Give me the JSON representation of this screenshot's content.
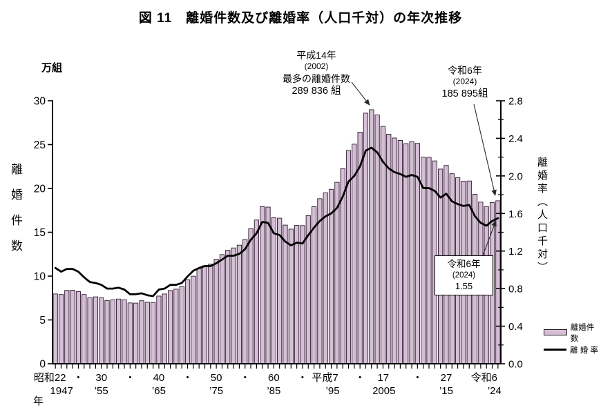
{
  "figure": {
    "title": "図 11　離婚件数及び離婚率（人口千対）の年次推移"
  },
  "chart_data": {
    "type": "bar+line",
    "title": "図 11　離婚件数及び離婚率（人口千対）の年次推移",
    "years": [
      1947,
      1948,
      1949,
      1950,
      1951,
      1952,
      1953,
      1954,
      1955,
      1956,
      1957,
      1958,
      1959,
      1960,
      1961,
      1962,
      1963,
      1964,
      1965,
      1966,
      1967,
      1968,
      1969,
      1970,
      1971,
      1972,
      1973,
      1974,
      1975,
      1976,
      1977,
      1978,
      1979,
      1980,
      1981,
      1982,
      1983,
      1984,
      1985,
      1986,
      1987,
      1988,
      1989,
      1990,
      1991,
      1992,
      1993,
      1994,
      1995,
      1996,
      1997,
      1998,
      1999,
      2000,
      2001,
      2002,
      2003,
      2004,
      2005,
      2006,
      2007,
      2008,
      2009,
      2010,
      2011,
      2012,
      2013,
      2014,
      2015,
      2016,
      2017,
      2018,
      2019,
      2020,
      2021,
      2022,
      2023,
      2024
    ],
    "series": [
      {
        "name": "離婚件数",
        "type": "bar",
        "axis": "left",
        "unit": "万組",
        "values": [
          7.96,
          7.9,
          8.37,
          8.38,
          8.23,
          7.9,
          7.53,
          7.63,
          7.53,
          7.2,
          7.3,
          7.38,
          7.3,
          6.94,
          6.92,
          7.19,
          7.01,
          6.99,
          7.72,
          7.96,
          8.35,
          8.51,
          8.81,
          9.59,
          9.99,
          10.84,
          11.19,
          11.36,
          11.91,
          12.45,
          12.95,
          13.21,
          13.53,
          14.17,
          15.42,
          16.4,
          17.92,
          17.87,
          16.66,
          16.61,
          15.82,
          15.36,
          15.78,
          15.76,
          16.9,
          17.92,
          18.83,
          19.51,
          19.9,
          20.7,
          22.26,
          24.32,
          25.05,
          26.42,
          28.59,
          28.98,
          28.39,
          27.08,
          26.19,
          25.75,
          25.48,
          25.11,
          25.34,
          25.14,
          23.57,
          23.54,
          23.14,
          22.21,
          22.62,
          21.68,
          21.23,
          20.83,
          20.85,
          19.33,
          18.44,
          17.91,
          18.38,
          18.59
        ]
      },
      {
        "name": "離婚率",
        "type": "line",
        "axis": "right",
        "unit": "人口千対",
        "values": [
          1.02,
          0.98,
          1.01,
          1.01,
          0.98,
          0.92,
          0.87,
          0.86,
          0.84,
          0.8,
          0.8,
          0.81,
          0.79,
          0.74,
          0.74,
          0.75,
          0.73,
          0.72,
          0.79,
          0.8,
          0.84,
          0.84,
          0.86,
          0.93,
          0.99,
          1.02,
          1.04,
          1.04,
          1.07,
          1.11,
          1.15,
          1.15,
          1.17,
          1.22,
          1.32,
          1.39,
          1.51,
          1.5,
          1.39,
          1.37,
          1.3,
          1.26,
          1.29,
          1.28,
          1.37,
          1.45,
          1.52,
          1.57,
          1.6,
          1.66,
          1.78,
          1.94,
          2.0,
          2.1,
          2.27,
          2.3,
          2.25,
          2.15,
          2.08,
          2.04,
          2.02,
          1.99,
          2.01,
          1.99,
          1.87,
          1.87,
          1.84,
          1.77,
          1.81,
          1.73,
          1.7,
          1.68,
          1.69,
          1.57,
          1.5,
          1.47,
          1.52,
          1.55
        ]
      }
    ],
    "left_axis": {
      "title": "離婚件数",
      "unit": "万組",
      "ticks": [
        0,
        5,
        10,
        15,
        20,
        25,
        30
      ],
      "range": [
        0,
        30
      ]
    },
    "right_axis": {
      "title": "離婚率（人口千対）",
      "tick_labels": [
        "0.0",
        "0.4",
        "0.8",
        "1.2",
        "1.6",
        "2.0",
        "2.4",
        "2.8"
      ],
      "range": [
        0,
        2.8
      ],
      "minor_step": 0.2
    },
    "x_axis": {
      "unit_label": "年",
      "labels": [
        {
          "text": "昭和22",
          "sub": "1947",
          "year": 1947
        },
        {
          "text": "・",
          "year": 1951
        },
        {
          "text": "30",
          "sub": "’55",
          "year": 1955
        },
        {
          "text": "・",
          "year": 1960
        },
        {
          "text": "40",
          "sub": "’65",
          "year": 1965
        },
        {
          "text": "・",
          "year": 1970
        },
        {
          "text": "50",
          "sub": "’75",
          "year": 1975
        },
        {
          "text": "・",
          "year": 1980
        },
        {
          "text": "60",
          "sub": "’85",
          "year": 1985
        },
        {
          "text": "・",
          "year": 1990
        },
        {
          "text": "平成7",
          "sub": "’95",
          "year": 1995
        },
        {
          "text": "・",
          "year": 2000
        },
        {
          "text": "17",
          "sub": "2005",
          "year": 2005
        },
        {
          "text": "・",
          "year": 2010
        },
        {
          "text": "27",
          "sub": "’15",
          "year": 2015
        },
        {
          "text": "令和6",
          "sub": "’24",
          "year": 2024
        }
      ]
    },
    "annotations": {
      "peak": {
        "lines": [
          "平成14年",
          "(2002)",
          "最多の離婚件数",
          "289 836 組"
        ],
        "target_year": 2002
      },
      "latest_count": {
        "lines": [
          "令和6年",
          "(2024)",
          "185 895組"
        ],
        "target_year": 2024
      },
      "latest_rate": {
        "lines": [
          "令和6年",
          "(2024)",
          "1.55"
        ],
        "target_year": 2024
      }
    },
    "legend": [
      {
        "label": "離婚件数",
        "swatch": "bar"
      },
      {
        "label": "離 婚 率",
        "swatch": "line"
      }
    ],
    "colors": {
      "bar_fill": "#d6bed6",
      "bar_stroke": "#2b1a2b",
      "line": "#000000",
      "axis": "#000000",
      "arrow": "#2a2a2a"
    }
  }
}
